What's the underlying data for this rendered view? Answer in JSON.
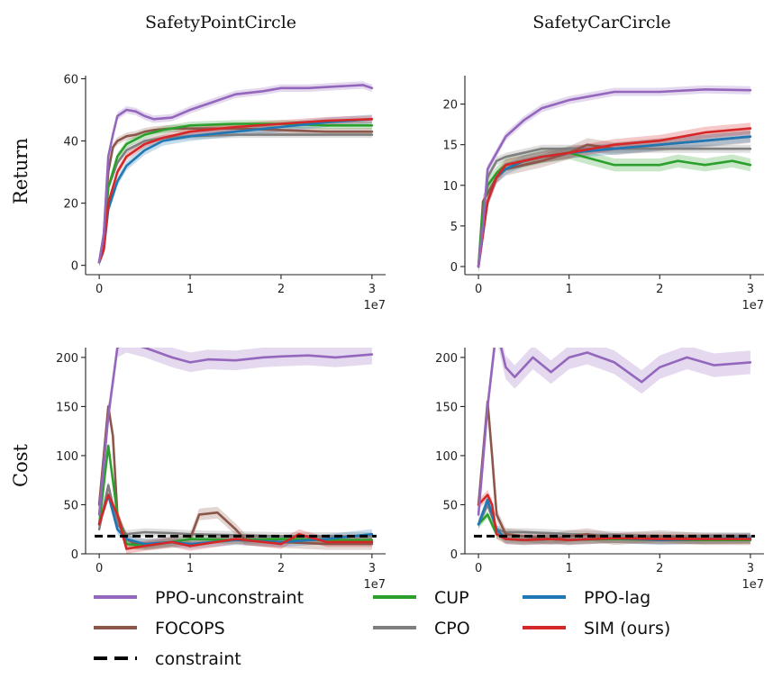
{
  "figure": {
    "column_titles": [
      "SafetyPointCircle",
      "SafetyCarCircle"
    ],
    "row_labels": [
      "Return",
      "Cost"
    ],
    "x_multiplier_label": "1e7"
  },
  "colors": {
    "PPO-unconstraint": "#9467bd",
    "FOCOPS": "#8c564b",
    "CUP": "#2ca02c",
    "CPO": "#7f7f7f",
    "PPO-lag": "#1f77b4",
    "SIM (ours)": "#d62728",
    "constraint": "#000000"
  },
  "legend": {
    "entries": [
      {
        "label": "PPO-unconstraint",
        "color": "#9467bd",
        "style": "solid"
      },
      {
        "label": "CUP",
        "color": "#2ca02c",
        "style": "solid"
      },
      {
        "label": "PPO-lag",
        "color": "#1f77b4",
        "style": "solid"
      },
      {
        "label": "FOCOPS",
        "color": "#8c564b",
        "style": "solid"
      },
      {
        "label": "CPO",
        "color": "#7f7f7f",
        "style": "solid"
      },
      {
        "label": "SIM (ours)",
        "color": "#d62728",
        "style": "solid"
      },
      {
        "label": "constraint",
        "color": "#000000",
        "style": "dashed"
      }
    ]
  },
  "chart_data": [
    {
      "type": "line",
      "title": "SafetyPointCircle",
      "ylabel": "Return",
      "xlabel": "",
      "xlim": [
        -0.15,
        3.15
      ],
      "ylim": [
        -3,
        61
      ],
      "xticks": [
        0,
        1,
        2,
        3
      ],
      "yticks": [
        0,
        20,
        40,
        60
      ],
      "x_scale_note": "1e7",
      "series": [
        {
          "name": "PPO-unconstraint",
          "band": 1.2,
          "x": [
            0,
            0.05,
            0.1,
            0.15,
            0.2,
            0.3,
            0.4,
            0.5,
            0.6,
            0.8,
            1.0,
            1.2,
            1.5,
            1.8,
            2.0,
            2.3,
            2.6,
            2.9,
            3.0
          ],
          "y": [
            1,
            10,
            35,
            42,
            48,
            50,
            49.5,
            48,
            47,
            47.5,
            50,
            52,
            55,
            56,
            57,
            57,
            57.5,
            58,
            57
          ]
        },
        {
          "name": "FOCOPS",
          "band": 1.2,
          "x": [
            0,
            0.05,
            0.1,
            0.15,
            0.2,
            0.3,
            0.4,
            0.5,
            0.6,
            0.8,
            1.0,
            1.5,
            2.0,
            2.5,
            3.0
          ],
          "y": [
            1,
            10,
            30,
            38,
            40,
            41.5,
            42,
            43,
            43.5,
            44,
            44,
            44,
            43.5,
            43,
            43
          ]
        },
        {
          "name": "CUP",
          "band": 1.2,
          "x": [
            0,
            0.05,
            0.1,
            0.2,
            0.3,
            0.5,
            0.7,
            0.9,
            1.0,
            1.5,
            2.0,
            2.5,
            3.0
          ],
          "y": [
            1,
            8,
            25,
            35,
            39,
            42,
            43.5,
            44.5,
            45,
            45.5,
            45.5,
            45,
            45
          ]
        },
        {
          "name": "CPO",
          "band": 1.0,
          "x": [
            0,
            0.05,
            0.1,
            0.2,
            0.3,
            0.5,
            0.7,
            1.0,
            1.5,
            2.0,
            2.5,
            3.0
          ],
          "y": [
            1,
            8,
            25,
            33,
            37,
            40,
            41,
            41.5,
            42,
            42,
            42,
            42
          ]
        },
        {
          "name": "PPO-lag",
          "band": 1.5,
          "x": [
            0,
            0.05,
            0.1,
            0.2,
            0.3,
            0.5,
            0.7,
            1.0,
            1.5,
            2.0,
            2.5,
            3.0
          ],
          "y": [
            1,
            5,
            18,
            27,
            32,
            37,
            40,
            41.5,
            43,
            44.5,
            46,
            47
          ]
        },
        {
          "name": "SIM (ours)",
          "band": 1.2,
          "x": [
            0,
            0.05,
            0.1,
            0.2,
            0.3,
            0.5,
            0.7,
            1.0,
            1.5,
            2.0,
            2.5,
            3.0
          ],
          "y": [
            1,
            5,
            20,
            30,
            35,
            39,
            41,
            43,
            44.5,
            45.5,
            46.5,
            47
          ]
        }
      ]
    },
    {
      "type": "line",
      "title": "SafetyCarCircle",
      "ylabel": "",
      "xlabel": "",
      "xlim": [
        -0.15,
        3.15
      ],
      "ylim": [
        -1,
        23.5
      ],
      "xticks": [
        0,
        1,
        2,
        3
      ],
      "yticks": [
        0,
        5,
        10,
        15,
        20
      ],
      "x_scale_note": "1e7",
      "series": [
        {
          "name": "PPO-unconstraint",
          "band": 0.5,
          "x": [
            0,
            0.05,
            0.1,
            0.2,
            0.3,
            0.5,
            0.7,
            1.0,
            1.5,
            2.0,
            2.5,
            3.0
          ],
          "y": [
            0,
            5,
            12,
            14,
            16,
            18,
            19.5,
            20.5,
            21.5,
            21.5,
            21.8,
            21.7
          ]
        },
        {
          "name": "FOCOPS",
          "band": 0.8,
          "x": [
            0,
            0.05,
            0.1,
            0.2,
            0.3,
            0.5,
            0.7,
            1.0,
            1.2,
            1.5,
            2.0,
            2.5,
            3.0
          ],
          "y": [
            0,
            8,
            9,
            11,
            12,
            12.5,
            13,
            14,
            15,
            14.5,
            15,
            15.5,
            16
          ]
        },
        {
          "name": "CUP",
          "band": 0.8,
          "x": [
            0,
            0.05,
            0.1,
            0.2,
            0.3,
            0.5,
            0.7,
            1.0,
            1.5,
            2.0,
            2.2,
            2.5,
            2.8,
            3.0
          ],
          "y": [
            0,
            7,
            10,
            11.5,
            12.5,
            13,
            13.5,
            14,
            12.5,
            12.5,
            13,
            12.5,
            13,
            12.5
          ]
        },
        {
          "name": "CPO",
          "band": 0.5,
          "x": [
            0,
            0.05,
            0.1,
            0.2,
            0.3,
            0.5,
            0.7,
            1.0,
            1.5,
            2.0,
            2.5,
            3.0
          ],
          "y": [
            0,
            6,
            11,
            13,
            13.5,
            14,
            14.5,
            14.5,
            14.5,
            14.5,
            14.5,
            14.5
          ]
        },
        {
          "name": "PPO-lag",
          "band": 0.7,
          "x": [
            0,
            0.05,
            0.1,
            0.2,
            0.3,
            0.5,
            0.7,
            1.0,
            1.5,
            2.0,
            2.5,
            3.0
          ],
          "y": [
            0,
            4,
            8,
            11,
            12,
            13,
            13.5,
            14,
            14.5,
            15,
            15.5,
            16
          ]
        },
        {
          "name": "SIM (ours)",
          "band": 0.7,
          "x": [
            0,
            0.05,
            0.1,
            0.2,
            0.3,
            0.5,
            0.7,
            1.0,
            1.5,
            2.0,
            2.5,
            3.0
          ],
          "y": [
            0,
            4,
            8,
            11,
            12.5,
            13,
            13.5,
            14,
            15,
            15.5,
            16.5,
            17
          ]
        }
      ]
    },
    {
      "type": "line",
      "title": "",
      "ylabel": "Cost",
      "xlabel": "",
      "xlim": [
        -0.15,
        3.15
      ],
      "ylim": [
        0,
        210
      ],
      "xticks": [
        0,
        1,
        2,
        3
      ],
      "yticks": [
        0,
        50,
        100,
        150,
        200
      ],
      "x_scale_note": "1e7",
      "constraint": 18,
      "series": [
        {
          "name": "PPO-unconstraint",
          "band": 10,
          "x": [
            0,
            0.1,
            0.2,
            0.3,
            0.5,
            0.8,
            1.0,
            1.2,
            1.5,
            1.8,
            2.0,
            2.3,
            2.6,
            3.0
          ],
          "y": [
            40,
            140,
            210,
            215,
            210,
            200,
            195,
            198,
            197,
            200,
            201,
            202,
            200,
            203
          ]
        },
        {
          "name": "FOCOPS",
          "band": 6,
          "x": [
            0,
            0.1,
            0.15,
            0.2,
            0.3,
            0.4,
            0.6,
            0.8,
            1.0,
            1.1,
            1.3,
            1.5,
            1.6,
            2.0,
            2.5,
            3.0
          ],
          "y": [
            50,
            150,
            120,
            40,
            15,
            10,
            10,
            12,
            15,
            40,
            42,
            25,
            15,
            12,
            10,
            10
          ]
        },
        {
          "name": "CUP",
          "band": 4,
          "x": [
            0,
            0.1,
            0.2,
            0.3,
            0.5,
            0.8,
            1.0,
            1.5,
            2.0,
            2.5,
            3.0
          ],
          "y": [
            30,
            110,
            40,
            10,
            8,
            12,
            15,
            14,
            15,
            14,
            14
          ]
        },
        {
          "name": "CPO",
          "band": 4,
          "x": [
            0,
            0.1,
            0.2,
            0.3,
            0.5,
            0.8,
            1.0,
            1.5,
            2.0,
            2.5,
            3.0
          ],
          "y": [
            25,
            70,
            30,
            20,
            22,
            21,
            20,
            19,
            18,
            18,
            18
          ]
        },
        {
          "name": "PPO-lag",
          "band": 5,
          "x": [
            0,
            0.1,
            0.2,
            0.3,
            0.5,
            0.8,
            1.0,
            1.5,
            2.0,
            2.5,
            3.0
          ],
          "y": [
            30,
            60,
            25,
            15,
            10,
            12,
            10,
            14,
            12,
            15,
            20
          ]
        },
        {
          "name": "SIM (ours)",
          "band": 5,
          "x": [
            0,
            0.1,
            0.2,
            0.3,
            0.5,
            0.8,
            1.0,
            1.5,
            2.0,
            2.2,
            2.5,
            3.0
          ],
          "y": [
            30,
            60,
            40,
            5,
            8,
            12,
            8,
            15,
            10,
            20,
            12,
            12
          ]
        }
      ]
    },
    {
      "type": "line",
      "title": "",
      "ylabel": "",
      "xlabel": "",
      "xlim": [
        -0.15,
        3.15
      ],
      "ylim": [
        0,
        210
      ],
      "xticks": [
        0,
        1,
        2,
        3
      ],
      "yticks": [
        0,
        50,
        100,
        150,
        200
      ],
      "x_scale_note": "1e7",
      "constraint": 18,
      "series": [
        {
          "name": "PPO-unconstraint",
          "band": 12,
          "x": [
            0,
            0.1,
            0.2,
            0.3,
            0.4,
            0.6,
            0.8,
            1.0,
            1.2,
            1.5,
            1.8,
            2.0,
            2.3,
            2.6,
            3.0
          ],
          "y": [
            40,
            150,
            230,
            190,
            180,
            200,
            185,
            200,
            205,
            195,
            175,
            190,
            200,
            192,
            195
          ]
        },
        {
          "name": "FOCOPS",
          "band": 6,
          "x": [
            0,
            0.1,
            0.15,
            0.2,
            0.3,
            0.5,
            0.8,
            1.0,
            1.2,
            1.5,
            2.0,
            2.5,
            3.0
          ],
          "y": [
            50,
            155,
            100,
            40,
            20,
            18,
            15,
            18,
            20,
            15,
            18,
            15,
            15
          ]
        },
        {
          "name": "CUP",
          "band": 4,
          "x": [
            0,
            0.1,
            0.2,
            0.3,
            0.5,
            0.8,
            1.0,
            1.5,
            2.0,
            2.5,
            3.0
          ],
          "y": [
            30,
            40,
            20,
            15,
            14,
            15,
            14,
            15,
            14,
            14,
            14
          ]
        },
        {
          "name": "CPO",
          "band": 4,
          "x": [
            0,
            0.1,
            0.2,
            0.3,
            0.5,
            0.8,
            1.0,
            1.5,
            2.0,
            2.5,
            3.0
          ],
          "y": [
            30,
            50,
            25,
            22,
            22,
            21,
            20,
            19,
            18,
            18,
            18
          ]
        },
        {
          "name": "PPO-lag",
          "band": 5,
          "x": [
            0,
            0.1,
            0.2,
            0.3,
            0.5,
            0.8,
            1.0,
            1.5,
            2.0,
            2.5,
            3.0
          ],
          "y": [
            30,
            55,
            25,
            15,
            14,
            15,
            14,
            16,
            14,
            15,
            16
          ]
        },
        {
          "name": "SIM (ours)",
          "band": 5,
          "x": [
            0,
            0.1,
            0.15,
            0.2,
            0.3,
            0.5,
            0.8,
            1.0,
            1.5,
            2.0,
            2.5,
            3.0
          ],
          "y": [
            50,
            60,
            50,
            20,
            15,
            14,
            15,
            14,
            16,
            15,
            15,
            15
          ]
        }
      ]
    }
  ]
}
